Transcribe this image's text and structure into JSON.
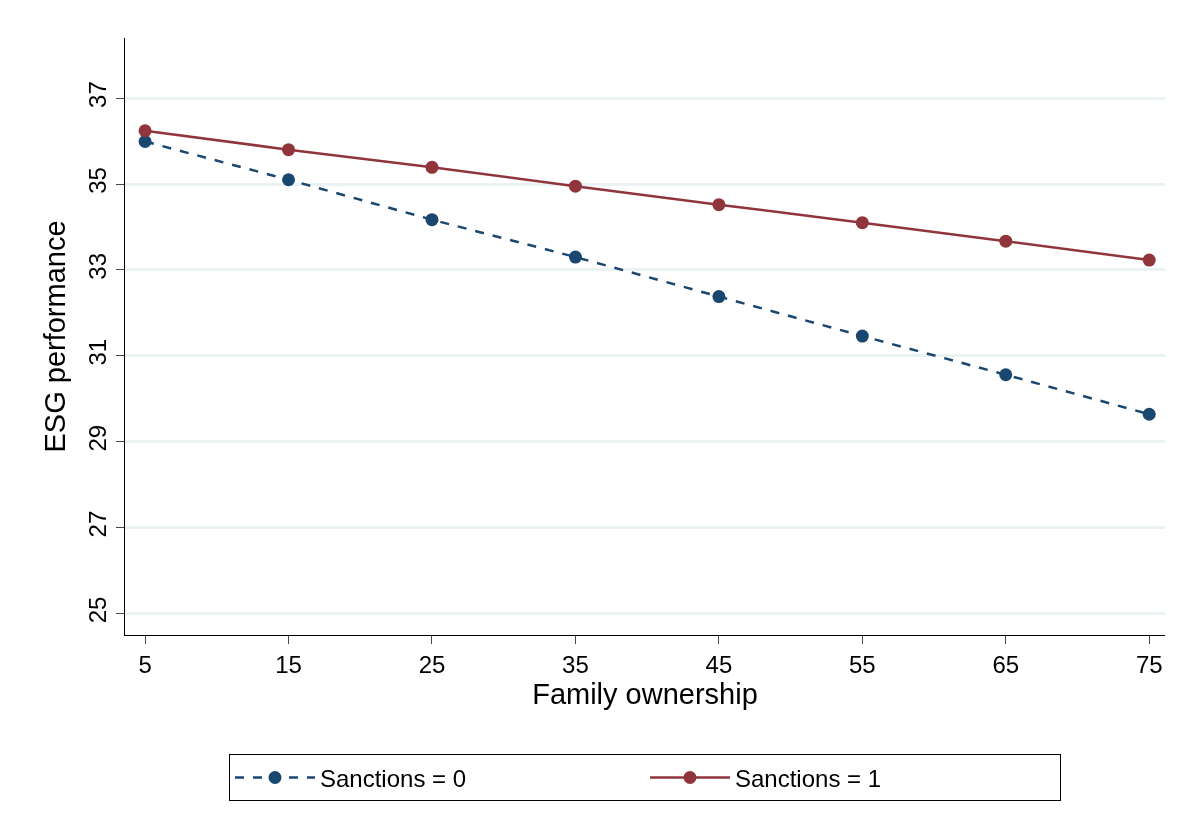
{
  "chart_data": {
    "type": "line",
    "xlabel": "Family ownership",
    "ylabel": "ESG performance",
    "x": [
      5,
      15,
      25,
      35,
      45,
      55,
      65,
      75
    ],
    "series": [
      {
        "name": "Sanctions = 0",
        "color": "#1a476f",
        "line_style": "dashed",
        "values": [
          35.99,
          35.1,
          34.17,
          33.3,
          32.38,
          31.46,
          30.56,
          29.64
        ]
      },
      {
        "name": "Sanctions = 1",
        "color": "#90353b",
        "line_style": "solid",
        "values": [
          36.24,
          35.8,
          35.39,
          34.95,
          34.52,
          34.1,
          33.67,
          33.23
        ]
      }
    ],
    "xlim": [
      3.6,
      76.1
    ],
    "xticks": [
      5,
      15,
      25,
      35,
      45,
      55,
      65,
      75
    ],
    "ylim": [
      24.5,
      38.4
    ],
    "yticks": [
      25,
      27,
      29,
      31,
      33,
      35,
      37
    ],
    "grid": "y",
    "legend": "bottom",
    "marker": "circle"
  }
}
